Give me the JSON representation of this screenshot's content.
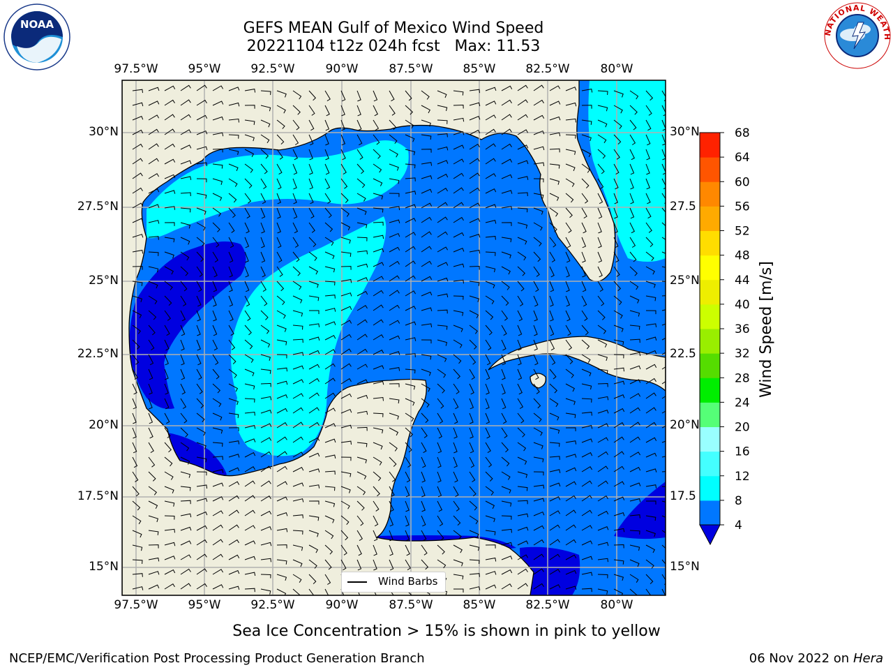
{
  "header": {
    "title_line1": "GEFS MEAN Gulf of Mexico Wind Speed",
    "title_line2": "20221104 t12z 024h fcst   Max: 11.53"
  },
  "map": {
    "lon_labels": [
      "97.5°W",
      "95°W",
      "92.5°W",
      "90°W",
      "87.5°W",
      "85°W",
      "82.5°W",
      "80°W"
    ],
    "lat_labels": [
      "30°N",
      "27.5°N",
      "25°N",
      "22.5°N",
      "20°N",
      "17.5°N",
      "15°N"
    ],
    "right_lat_labels": [
      "30°N",
      "27.5",
      "25°N",
      "22.5",
      "20°N",
      "17.5",
      "15°N"
    ],
    "legend_label": "Wind Barbs",
    "land_color": "#efeedd",
    "colors": {
      "level_4": "#0000e0",
      "level_4_8": "#0077ff",
      "level_8_12": "#00e5ff",
      "level_12_16": "#00ffff"
    }
  },
  "colorbar": {
    "label": "Wind Speed [m/s]",
    "ticks": [
      "4",
      "8",
      "12",
      "16",
      "20",
      "24",
      "28",
      "32",
      "36",
      "40",
      "44",
      "48",
      "52",
      "56",
      "60",
      "64",
      "68"
    ],
    "colors": [
      "#0077ff",
      "#00ffff",
      "#44ffff",
      "#99ffff",
      "#55ff77",
      "#00ee00",
      "#55dd00",
      "#99ee00",
      "#ccff00",
      "#eeee00",
      "#ffff00",
      "#ffdd00",
      "#ffaa00",
      "#ff8800",
      "#ff5500",
      "#ff2200"
    ]
  },
  "footer": {
    "sea_ice_note": "Sea Ice Concentration > 15% is shown in pink to yellow",
    "credit": "NCEP/EMC/Verification Post Processing Product Generation Branch",
    "date": "06 Nov 2022 on",
    "machine": "Hera"
  },
  "logos": {
    "noaa": {
      "text": "NOAA",
      "ring_text": "NATIONAL OCEANIC AND ATMOSPHERIC ADMINISTRATION · U.S. DEPARTMENT OF COMMERCE"
    },
    "nws": {
      "ring_text": "NATIONAL WEATHER SERVICE"
    }
  }
}
